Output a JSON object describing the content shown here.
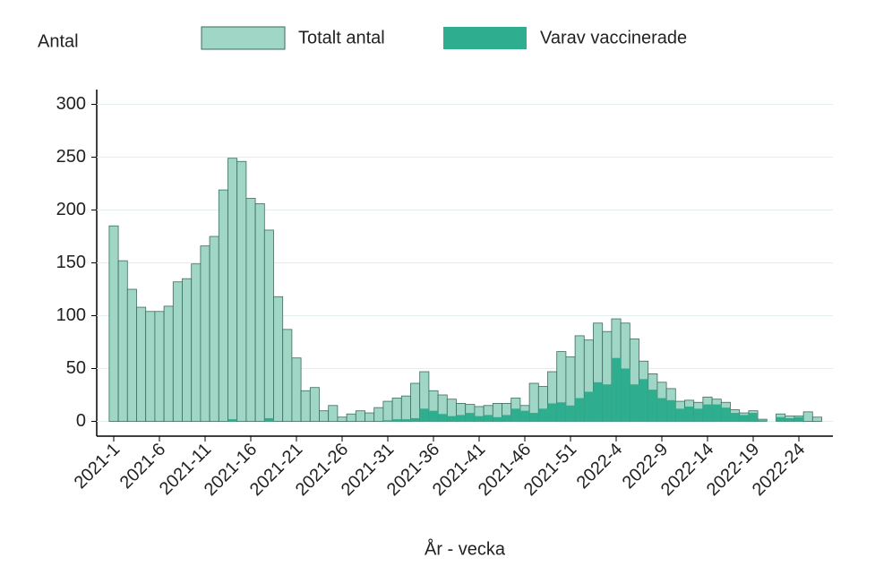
{
  "chart_data": {
    "type": "bar",
    "y_label": "Antal",
    "x_label": "År - vecka",
    "categories": [
      "2021-1",
      null,
      null,
      null,
      null,
      "2021-6",
      null,
      null,
      null,
      null,
      "2021-11",
      null,
      null,
      null,
      null,
      "2021-16",
      null,
      null,
      null,
      null,
      "2021-21",
      null,
      null,
      null,
      null,
      "2021-26",
      null,
      null,
      null,
      null,
      "2021-31",
      null,
      null,
      null,
      null,
      "2021-36",
      null,
      null,
      null,
      null,
      "2021-41",
      null,
      null,
      null,
      null,
      "2021-46",
      null,
      null,
      null,
      null,
      "2021-51",
      null,
      null,
      null,
      null,
      "2022-4",
      null,
      null,
      null,
      null,
      "2022-9",
      null,
      null,
      null,
      null,
      "2022-14",
      null,
      null,
      null,
      null,
      "2022-19",
      null,
      null,
      null,
      null,
      "2022-24",
      null,
      null
    ],
    "series": [
      {
        "name": "Totalt antal",
        "color": "#9fd6c5",
        "values": [
          185,
          152,
          125,
          108,
          104,
          104,
          109,
          132,
          135,
          149,
          166,
          175,
          219,
          249,
          246,
          211,
          206,
          181,
          118,
          87,
          60,
          29,
          32,
          10,
          15,
          4,
          7,
          10,
          8,
          13,
          19,
          22,
          24,
          36,
          47,
          29,
          25,
          21,
          17,
          16,
          14,
          15,
          17,
          17,
          22,
          15,
          36,
          33,
          47,
          66,
          61,
          81,
          77,
          93,
          85,
          97,
          93,
          78,
          57,
          45,
          37,
          31,
          19,
          20,
          18,
          23,
          21,
          18,
          11,
          8,
          10,
          2,
          0,
          7,
          5,
          5,
          9,
          4
        ]
      },
      {
        "name": "Varav vaccinerade",
        "color": "#2fae8f",
        "values": [
          0,
          0,
          0,
          0,
          0,
          0,
          0,
          0,
          0,
          0,
          0,
          0,
          0,
          2,
          0,
          0,
          0,
          3,
          0,
          0,
          0,
          0,
          0,
          0,
          0,
          0,
          0,
          0,
          0,
          0,
          1,
          2,
          2,
          3,
          12,
          10,
          7,
          5,
          6,
          8,
          5,
          6,
          4,
          6,
          12,
          10,
          8,
          12,
          17,
          18,
          15,
          22,
          28,
          37,
          35,
          60,
          50,
          35,
          40,
          30,
          22,
          20,
          12,
          14,
          12,
          16,
          16,
          13,
          8,
          6,
          8,
          1,
          0,
          4,
          3,
          4,
          0,
          0
        ]
      }
    ],
    "ylim": [
      -14,
      314
    ],
    "yticks": [
      0,
      50,
      100,
      150,
      200,
      250,
      300
    ],
    "grid": true
  }
}
